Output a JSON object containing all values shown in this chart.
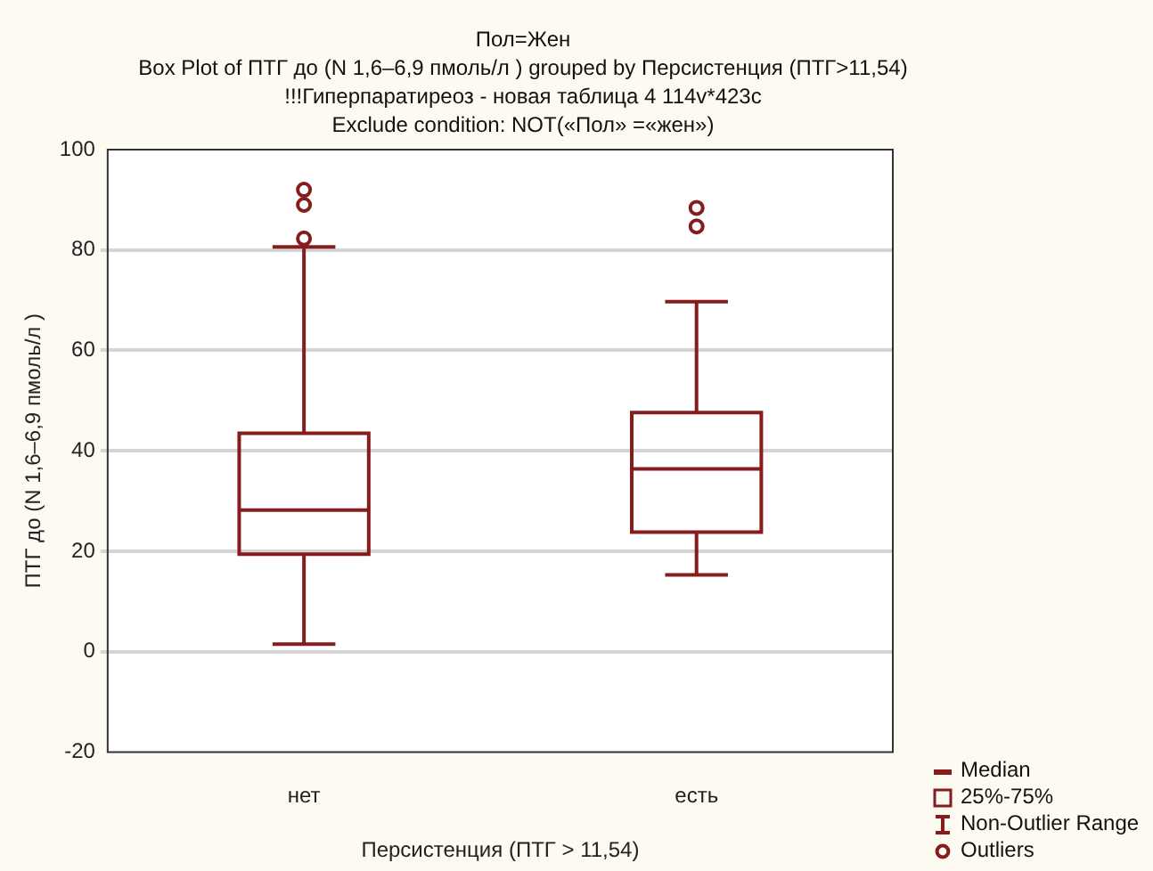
{
  "chart_data": {
    "type": "box",
    "title": "Пол=Жен",
    "subtitle": "Box Plot of ПТГ до (N 1,6–6,9 пмоль/л ) grouped by  Персистенция (ПТГ>11,54)",
    "xlabel": "Персистенция (ПТГ > 11,54)",
    "ylabel": "ПТГ до (N 1,6–6,9 пмоль/л )",
    "categories": [
      "нет",
      "есть"
    ],
    "series": [
      {
        "color": "#861c1c",
        "boxes": [
          {
            "low": 1.5,
            "q1": 19.4,
            "median": 28.2,
            "q3": 43.5,
            "high": 80.6,
            "outliers": [
              82.3,
              89,
              92
            ]
          },
          {
            "low": 15.3,
            "q1": 23.8,
            "median": 36.4,
            "q3": 47.6,
            "high": 69.7,
            "outliers": [
              84.7,
              88.4
            ]
          }
        ]
      }
    ],
    "ylim": [
      -20,
      100
    ],
    "yticks": [
      -20,
      0,
      20,
      40,
      60,
      80,
      100
    ],
    "grid": "y",
    "marker": "circle",
    "annotations": [
      "!!!Гиперпаратиреоз - новая таблица 4 114v*423c",
      "Exclude condition: NOT(«Пол» =«жен»)",
      "Median",
      "25%-75%",
      "Non-Outlier Range",
      "Outliers"
    ]
  }
}
